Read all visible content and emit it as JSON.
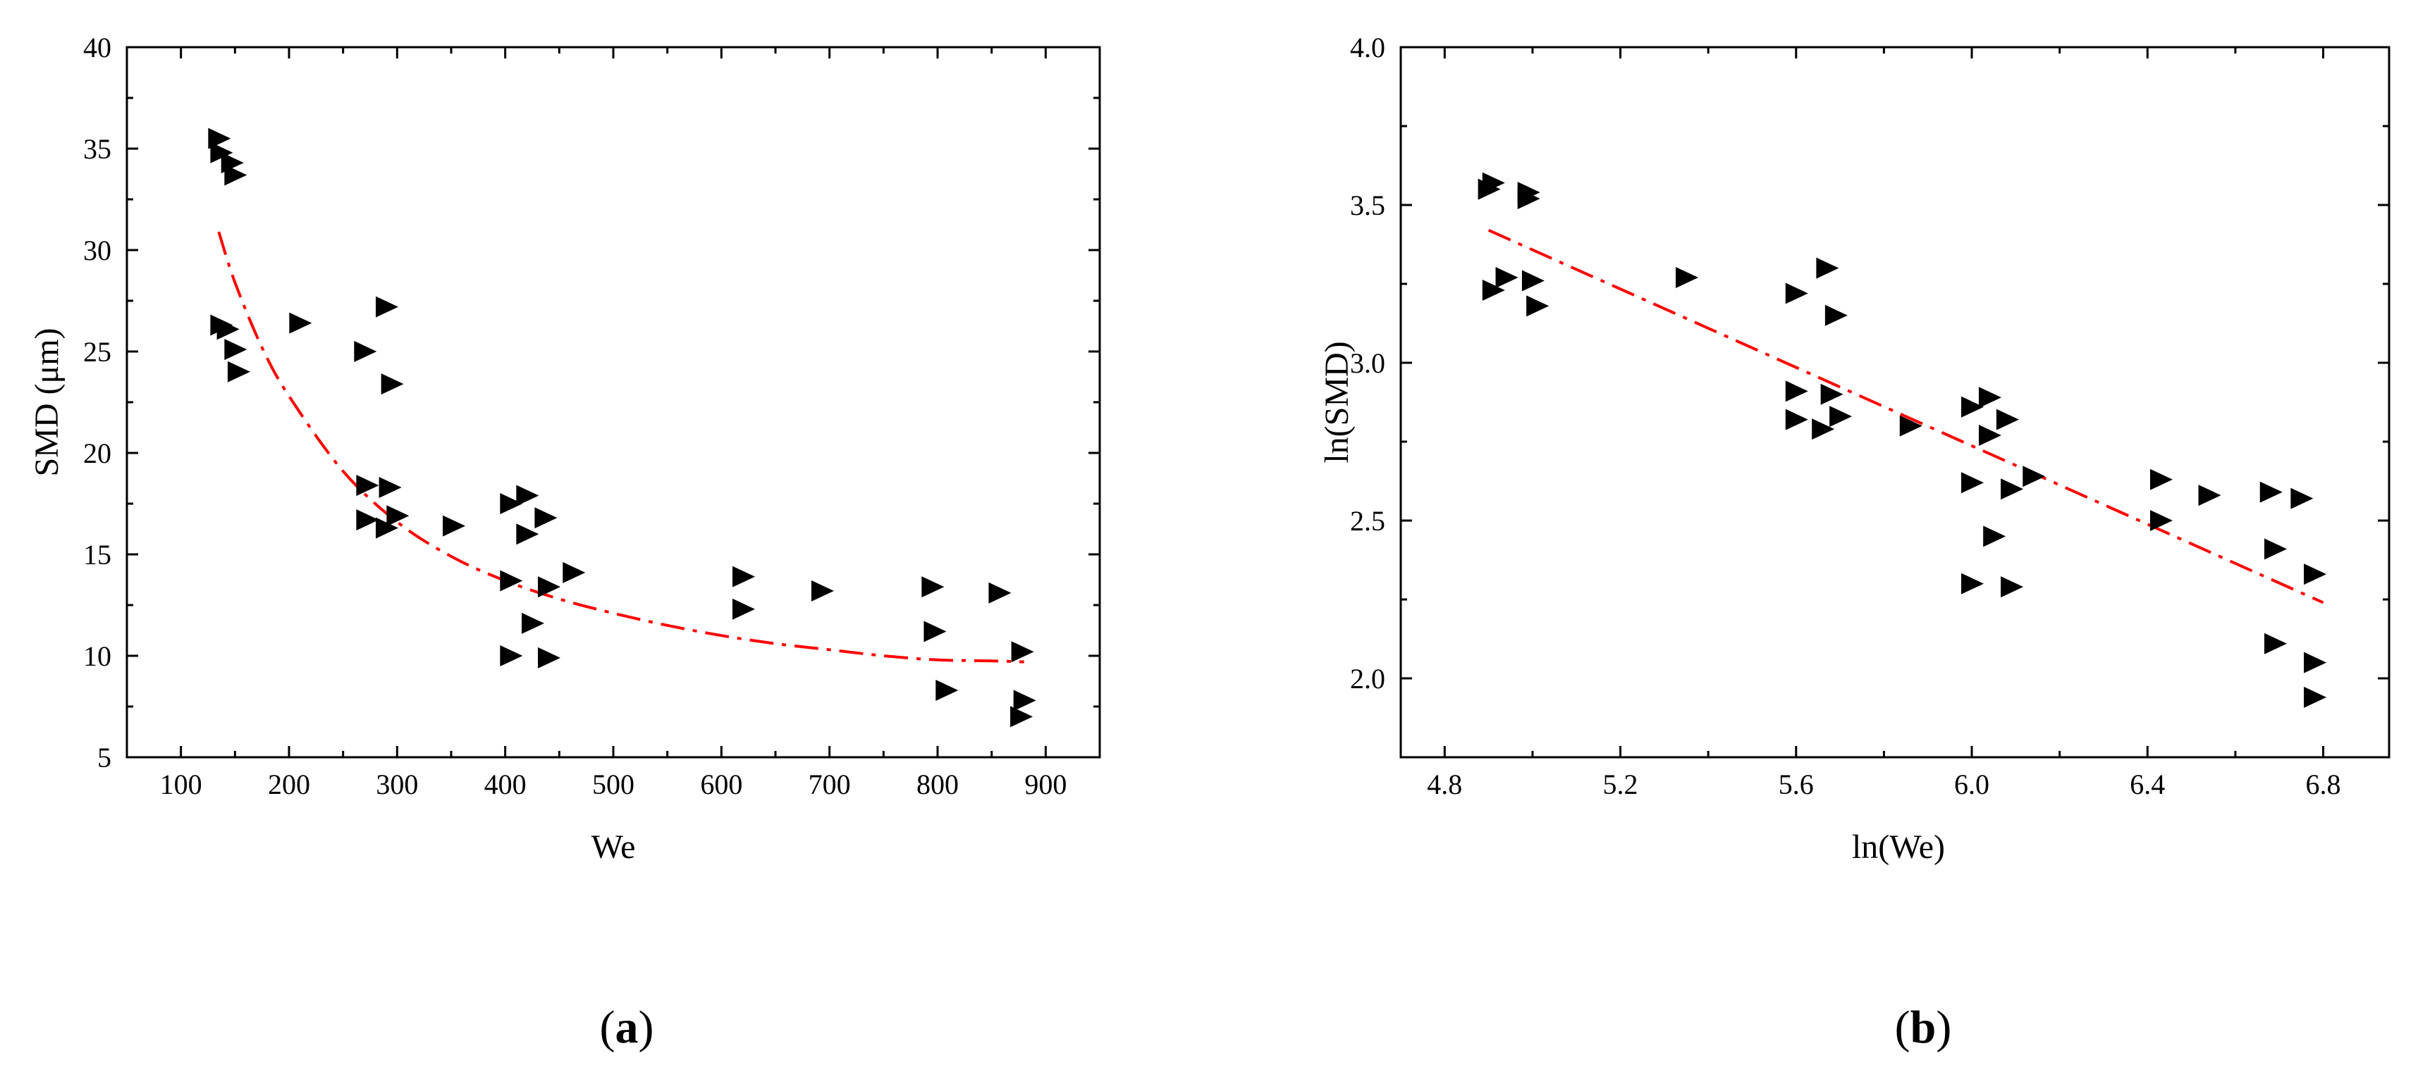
{
  "chart_data": [
    {
      "type": "scatter",
      "caption_open": "(",
      "caption_letter": "a",
      "caption_close": ")",
      "xlabel": "We",
      "ylabel": "SMD (μm)",
      "xlim": [
        50,
        950
      ],
      "ylim": [
        5,
        40
      ],
      "xticks": [
        100,
        200,
        300,
        400,
        500,
        600,
        700,
        800,
        900
      ],
      "yticks": [
        5,
        10,
        15,
        20,
        25,
        30,
        35,
        40
      ],
      "marker_color": "#000000",
      "points": {
        "x": [
          135,
          137,
          147,
          150,
          137,
          143,
          150,
          153,
          210,
          270,
          290,
          295,
          272,
          293,
          272,
          290,
          300,
          352,
          405,
          420,
          420,
          437,
          405,
          440,
          425,
          405,
          440,
          463,
          620,
          620,
          693,
          795,
          797,
          808,
          857,
          878,
          880,
          877
        ],
        "y": [
          35.5,
          34.8,
          34.3,
          33.7,
          26.3,
          26.1,
          25.1,
          24.0,
          26.4,
          25.0,
          27.2,
          23.4,
          18.4,
          18.3,
          16.7,
          16.3,
          16.9,
          16.4,
          17.5,
          17.9,
          16.0,
          16.8,
          13.7,
          13.4,
          11.6,
          10.0,
          9.9,
          14.1,
          13.9,
          12.3,
          13.2,
          13.4,
          11.2,
          8.3,
          13.1,
          10.2,
          7.8,
          7.0
        ]
      },
      "fit": {
        "type": "power",
        "color": "#ff0000",
        "x": [
          135,
          150,
          175,
          200,
          250,
          300,
          350,
          400,
          450,
          500,
          550,
          600,
          650,
          700,
          750,
          800,
          850,
          880
        ],
        "y": [
          30.9,
          28.4,
          25.2,
          22.8,
          19.1,
          16.6,
          14.9,
          13.7,
          12.8,
          12.1,
          11.5,
          11.0,
          10.6,
          10.3,
          10.0,
          9.8,
          9.75,
          9.7
        ]
      }
    },
    {
      "type": "scatter",
      "caption_open": "(",
      "caption_letter": "b",
      "caption_close": ")",
      "xlabel": "ln(We)",
      "ylabel": "ln(SMD)",
      "xlim": [
        4.7,
        6.95
      ],
      "ylim": [
        1.75,
        4.0
      ],
      "xticks": [
        4.8,
        5.2,
        5.6,
        6.0,
        6.4,
        6.8
      ],
      "ytick_labels": [
        "2.0",
        "2.5",
        "3.0",
        "3.5",
        "4.0"
      ],
      "yticks": [
        2.0,
        2.5,
        3.0,
        3.5,
        4.0
      ],
      "xtick_labels": [
        "4.8",
        "5.2",
        "5.6",
        "6.0",
        "6.4",
        "6.8"
      ],
      "marker_color": "#000000",
      "points": {
        "x": [
          4.91,
          4.9,
          4.99,
          4.99,
          4.91,
          4.94,
          5.0,
          5.01,
          5.35,
          5.6,
          5.67,
          5.69,
          5.6,
          5.68,
          5.6,
          5.66,
          5.7,
          5.86,
          6.0,
          6.04,
          6.04,
          6.08,
          6.0,
          6.09,
          6.05,
          6.0,
          6.09,
          6.14,
          6.43,
          6.43,
          6.54,
          6.68,
          6.69,
          6.69,
          6.75,
          6.78,
          6.78,
          6.78
        ],
        "y": [
          3.57,
          3.55,
          3.54,
          3.52,
          3.23,
          3.27,
          3.26,
          3.18,
          3.27,
          3.22,
          3.3,
          3.15,
          2.91,
          2.9,
          2.82,
          2.79,
          2.83,
          2.8,
          2.86,
          2.89,
          2.77,
          2.82,
          2.62,
          2.6,
          2.45,
          2.3,
          2.29,
          2.64,
          2.63,
          2.5,
          2.58,
          2.59,
          2.41,
          2.11,
          2.57,
          2.33,
          2.05,
          1.94
        ]
      },
      "fit": {
        "type": "linear",
        "color": "#ff0000",
        "x": [
          4.9,
          6.8
        ],
        "y": [
          3.42,
          2.24
        ]
      }
    }
  ]
}
